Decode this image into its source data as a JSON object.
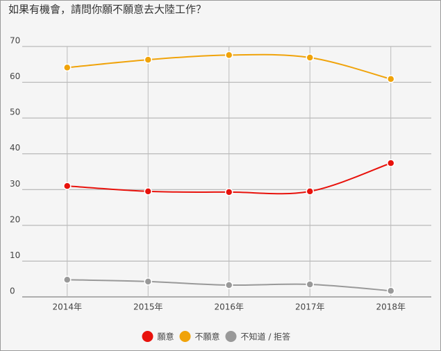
{
  "chart_data": {
    "type": "line",
    "title": "如果有機會，請問你願不願意去大陸工作？",
    "categories": [
      "2014年",
      "2015年",
      "2016年",
      "2017年",
      "2018年"
    ],
    "series": [
      {
        "name": "願意",
        "color": "#e8120c",
        "values": [
          31.0,
          29.5,
          29.3,
          29.5,
          37.4
        ]
      },
      {
        "name": "不願意",
        "color": "#f0a30a",
        "values": [
          64.1,
          66.3,
          67.6,
          66.9,
          60.9
        ]
      },
      {
        "name": "不知道 / 拒答",
        "color": "#999999",
        "values": [
          4.8,
          4.3,
          3.3,
          3.5,
          1.7
        ]
      }
    ],
    "ylim": [
      0,
      70
    ],
    "yticks": [
      0,
      10,
      20,
      30,
      40,
      50,
      60,
      70
    ],
    "grid": true,
    "legend": "bottom"
  }
}
